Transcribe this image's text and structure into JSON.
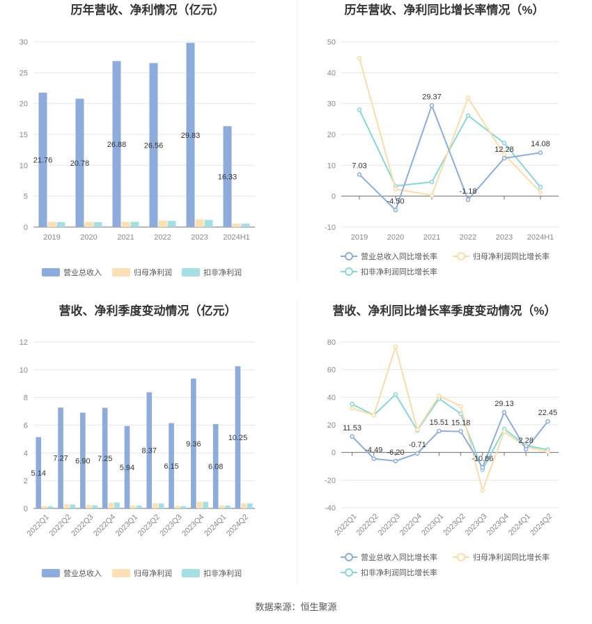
{
  "colors": {
    "revenue": "#8eacdb",
    "parent_net": "#fbe0b4",
    "deducted_net": "#a6dfe3",
    "revenue_line": "#8eacdb",
    "parent_line": "#fbdca6",
    "deducted_line": "#88d6d9"
  },
  "source": "数据来源：恒生聚源",
  "chart_data": [
    {
      "type": "bar",
      "title": "历年营收、净利情况（亿元）",
      "categories": [
        "2019",
        "2020",
        "2021",
        "2022",
        "2023",
        "2024H1"
      ],
      "ylim": [
        0,
        30
      ],
      "yticks": [
        "0",
        "5",
        "10",
        "15",
        "20",
        "25",
        "30"
      ],
      "series": [
        {
          "name": "营业总收入",
          "values": [
            21.76,
            20.78,
            26.88,
            26.56,
            29.83,
            16.33
          ],
          "labels": [
            "21.76",
            "20.78",
            "26.88",
            "26.56",
            "29.83",
            "16.33"
          ]
        },
        {
          "name": "归母净利润",
          "values": [
            0.85,
            0.85,
            0.85,
            1.05,
            1.25,
            0.55
          ]
        },
        {
          "name": "扣非净利润",
          "values": [
            0.8,
            0.8,
            0.85,
            1.0,
            1.15,
            0.55
          ]
        }
      ],
      "legend": "bottom"
    },
    {
      "type": "line",
      "title": "历年营收、净利同比增长率情况（%）",
      "categories": [
        "2019",
        "2020",
        "2021",
        "2022",
        "2023",
        "2024H1"
      ],
      "ylim": [
        -10,
        50
      ],
      "yticks": [
        "-10",
        "0",
        "10",
        "20",
        "30",
        "40",
        "50"
      ],
      "series": [
        {
          "name": "营业总收入同比增长率",
          "values": [
            7.03,
            -4.5,
            29.37,
            -1.18,
            12.28,
            14.08
          ],
          "labels": [
            "7.03",
            "-4.50",
            "29.37",
            "-1.18",
            "12.28",
            "14.08"
          ]
        },
        {
          "name": "归母净利润同比增长率",
          "values": [
            44.7,
            2.3,
            0.3,
            31.8,
            13.5,
            1.3
          ]
        },
        {
          "name": "扣非净利润同比增长率",
          "values": [
            28.0,
            3.3,
            4.6,
            26.1,
            17.2,
            2.9
          ]
        }
      ],
      "legend": "bottom"
    },
    {
      "type": "bar",
      "title": "营收、净利季度变动情况（亿元）",
      "categories": [
        "2022Q1",
        "2022Q2",
        "2022Q3",
        "2022Q4",
        "2023Q1",
        "2023Q2",
        "2023Q3",
        "2023Q4",
        "2024Q1",
        "2024Q2"
      ],
      "ylim": [
        0,
        12
      ],
      "yticks": [
        "0",
        "2",
        "4",
        "6",
        "8",
        "10",
        "12"
      ],
      "series": [
        {
          "name": "营业总收入",
          "values": [
            5.14,
            7.27,
            6.9,
            7.25,
            5.94,
            8.37,
            6.15,
            9.36,
            6.08,
            10.25
          ],
          "labels": [
            "5.14",
            "7.27",
            "6.90",
            "7.25",
            "5.94",
            "8.37",
            "6.15",
            "9.36",
            "6.08",
            "10.25"
          ]
        },
        {
          "name": "归母净利润",
          "values": [
            0.17,
            0.3,
            0.25,
            0.4,
            0.2,
            0.37,
            0.18,
            0.48,
            0.2,
            0.36
          ]
        },
        {
          "name": "扣非净利润",
          "values": [
            0.15,
            0.28,
            0.22,
            0.42,
            0.2,
            0.36,
            0.16,
            0.48,
            0.2,
            0.36
          ]
        }
      ],
      "legend": "bottom"
    },
    {
      "type": "line",
      "title": "营收、净利同比增长率季度变动情况（%）",
      "categories": [
        "2022Q1",
        "2022Q2",
        "2022Q3",
        "2022Q4",
        "2023Q1",
        "2023Q2",
        "2023Q3",
        "2023Q4",
        "2024Q1",
        "2024Q2"
      ],
      "ylim": [
        -40,
        80
      ],
      "yticks": [
        "-40",
        "-20",
        "0",
        "20",
        "40",
        "60",
        "80"
      ],
      "series": [
        {
          "name": "营业总收入同比增长率",
          "values": [
            11.53,
            -4.49,
            -6.2,
            -0.71,
            15.51,
            15.18,
            -10.86,
            29.13,
            2.28,
            22.45
          ],
          "labels": [
            "11.53",
            "-4.49",
            "-6.20",
            "-0.71",
            "15.51",
            "15.18",
            "-10.86",
            "29.13",
            "2.28",
            "22.45"
          ]
        },
        {
          "name": "归母净利润同比增长率",
          "values": [
            32.0,
            27.0,
            76.5,
            16.5,
            41.0,
            33.5,
            -27.5,
            15.0,
            4.0,
            0.5
          ]
        },
        {
          "name": "扣非净利润同比增长率",
          "values": [
            35.0,
            27.0,
            42.0,
            16.0,
            39.0,
            28.0,
            -12.5,
            17.0,
            5.0,
            2.0
          ]
        }
      ],
      "legend": "bottom"
    }
  ]
}
